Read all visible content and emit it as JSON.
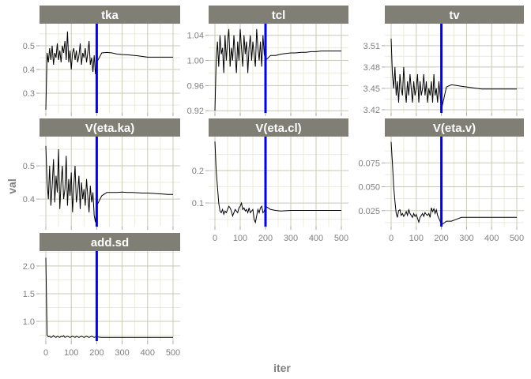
{
  "chart_data": {
    "type": "line",
    "xlabel": "iter",
    "ylabel": "val",
    "xlim": [
      0,
      500
    ],
    "x_ticks": [
      0,
      100,
      200,
      300,
      400,
      500
    ],
    "vline": {
      "x": 200,
      "color": "#0000ff"
    },
    "line_color": "#000000",
    "strip_color": "#7f7f75",
    "grid": true,
    "x": [
      0,
      5,
      10,
      15,
      20,
      25,
      30,
      35,
      40,
      45,
      50,
      55,
      60,
      65,
      70,
      75,
      80,
      85,
      90,
      95,
      100,
      105,
      110,
      115,
      120,
      125,
      130,
      135,
      140,
      145,
      150,
      155,
      160,
      165,
      170,
      175,
      180,
      185,
      190,
      195,
      200,
      220,
      240,
      260,
      280,
      300,
      320,
      340,
      360,
      380,
      400,
      420,
      440,
      460,
      480,
      500
    ],
    "panels": [
      {
        "name": "tka",
        "ylim": [
          0.217,
          0.593
        ],
        "y_ticks": [
          0.3,
          0.4,
          0.5
        ],
        "y_tick_labels": [
          "0.3",
          "0.4",
          "0.5"
        ],
        "values": [
          0.23,
          0.47,
          0.43,
          0.49,
          0.44,
          0.5,
          0.42,
          0.47,
          0.45,
          0.51,
          0.44,
          0.48,
          0.43,
          0.5,
          0.47,
          0.52,
          0.44,
          0.56,
          0.43,
          0.48,
          0.4,
          0.47,
          0.49,
          0.44,
          0.48,
          0.43,
          0.46,
          0.51,
          0.42,
          0.47,
          0.45,
          0.49,
          0.43,
          0.47,
          0.52,
          0.42,
          0.45,
          0.39,
          0.46,
          0.38,
          0.43,
          0.47,
          0.472,
          0.47,
          0.465,
          0.463,
          0.462,
          0.46,
          0.458,
          0.455,
          0.452,
          0.452,
          0.452,
          0.452,
          0.452,
          0.452
        ]
      },
      {
        "name": "tcl",
        "ylim": [
          0.9165,
          1.0585
        ],
        "y_ticks": [
          0.92,
          0.96,
          1.0,
          1.04
        ],
        "y_tick_labels": [
          "0.92",
          "0.96",
          "1.00",
          "1.04"
        ],
        "values": [
          0.92,
          1.0,
          1.03,
          0.99,
          1.04,
          1.01,
          1.02,
          0.98,
          1.04,
          1.0,
          1.03,
          1.05,
          0.99,
          1.02,
          1.0,
          1.04,
          1.01,
          0.98,
          1.03,
          1.0,
          1.05,
          1.02,
          0.99,
          1.04,
          1.01,
          1.03,
          0.98,
          1.02,
          1.04,
          1.0,
          1.03,
          1.01,
          0.99,
          1.05,
          1.02,
          1.0,
          1.03,
          0.99,
          1.04,
          1.01,
          1.0,
          1.008,
          1.008,
          1.01,
          1.011,
          1.012,
          1.012,
          1.013,
          1.013,
          1.014,
          1.014,
          1.015,
          1.015,
          1.015,
          1.015,
          1.015
        ]
      },
      {
        "name": "tv",
        "ylim": [
          3.4155,
          3.541
        ],
        "y_ticks": [
          3.42,
          3.45,
          3.48,
          3.51
        ],
        "y_tick_labels": [
          "3.42",
          "3.45",
          "3.48",
          "3.51"
        ],
        "values": [
          3.52,
          3.47,
          3.45,
          3.48,
          3.44,
          3.46,
          3.43,
          3.47,
          3.45,
          3.44,
          3.48,
          3.45,
          3.43,
          3.46,
          3.44,
          3.47,
          3.45,
          3.43,
          3.46,
          3.44,
          3.45,
          3.47,
          3.43,
          3.46,
          3.44,
          3.45,
          3.47,
          3.44,
          3.46,
          3.43,
          3.45,
          3.44,
          3.46,
          3.43,
          3.47,
          3.44,
          3.45,
          3.43,
          3.46,
          3.44,
          3.42,
          3.452,
          3.455,
          3.454,
          3.453,
          3.452,
          3.451,
          3.45,
          3.449,
          3.449,
          3.449,
          3.449,
          3.449,
          3.449,
          3.449,
          3.449
        ]
      },
      {
        "name": "V(eta.ka)",
        "ylim": [
          0.317,
          0.588
        ],
        "y_ticks": [
          0.4,
          0.5
        ],
        "y_tick_labels": [
          "0.4",
          "0.5"
        ],
        "values": [
          0.56,
          0.45,
          0.4,
          0.5,
          0.38,
          0.44,
          0.52,
          0.39,
          0.47,
          0.42,
          0.55,
          0.37,
          0.45,
          0.5,
          0.4,
          0.43,
          0.53,
          0.38,
          0.46,
          0.41,
          0.48,
          0.36,
          0.44,
          0.5,
          0.39,
          0.42,
          0.47,
          0.37,
          0.45,
          0.4,
          0.43,
          0.38,
          0.46,
          0.41,
          0.36,
          0.44,
          0.39,
          0.42,
          0.35,
          0.33,
          0.38,
          0.41,
          0.42,
          0.42,
          0.42,
          0.421,
          0.42,
          0.42,
          0.419,
          0.418,
          0.418,
          0.417,
          0.416,
          0.415,
          0.414,
          0.414
        ]
      },
      {
        "name": "V(eta.cl)",
        "ylim": [
          0.027,
          0.305
        ],
        "y_ticks": [
          0.1,
          0.2
        ],
        "y_tick_labels": [
          "0.1",
          "0.2"
        ],
        "values": [
          0.29,
          0.2,
          0.15,
          0.1,
          0.075,
          0.07,
          0.08,
          0.065,
          0.075,
          0.07,
          0.08,
          0.09,
          0.085,
          0.075,
          0.06,
          0.07,
          0.08,
          0.075,
          0.07,
          0.085,
          0.09,
          0.1,
          0.08,
          0.085,
          0.075,
          0.08,
          0.07,
          0.085,
          0.07,
          0.075,
          0.08,
          0.05,
          0.04,
          0.06,
          0.08,
          0.07,
          0.085,
          0.09,
          0.07,
          0.075,
          0.09,
          0.08,
          0.077,
          0.075,
          0.076,
          0.077,
          0.077,
          0.077,
          0.077,
          0.077,
          0.077,
          0.077,
          0.077,
          0.077,
          0.077,
          0.077
        ]
      },
      {
        "name": "V(eta.v)",
        "ylim": [
          0.0083,
          0.1025
        ],
        "y_ticks": [
          0.025,
          0.05,
          0.075
        ],
        "y_tick_labels": [
          "0.025",
          "0.050",
          "0.075"
        ],
        "values": [
          0.097,
          0.075,
          0.05,
          0.035,
          0.022,
          0.018,
          0.025,
          0.026,
          0.02,
          0.022,
          0.019,
          0.021,
          0.024,
          0.02,
          0.026,
          0.022,
          0.02,
          0.018,
          0.022,
          0.019,
          0.021,
          0.017,
          0.013,
          0.018,
          0.02,
          0.022,
          0.019,
          0.023,
          0.021,
          0.02,
          0.022,
          0.018,
          0.028,
          0.024,
          0.027,
          0.022,
          0.026,
          0.02,
          0.017,
          0.014,
          0.01,
          0.014,
          0.014,
          0.016,
          0.018,
          0.018,
          0.018,
          0.018,
          0.018,
          0.018,
          0.018,
          0.018,
          0.018,
          0.018,
          0.018,
          0.018
        ]
      },
      {
        "name": "add.sd",
        "ylim": [
          0.643,
          2.27
        ],
        "y_ticks": [
          1.0,
          1.5,
          2.0
        ],
        "y_tick_labels": [
          "1.0",
          "1.5",
          "2.0"
        ],
        "values": [
          2.15,
          0.75,
          0.72,
          0.73,
          0.71,
          0.72,
          0.74,
          0.72,
          0.71,
          0.73,
          0.72,
          0.71,
          0.73,
          0.72,
          0.74,
          0.71,
          0.72,
          0.73,
          0.72,
          0.71,
          0.72,
          0.73,
          0.72,
          0.71,
          0.73,
          0.72,
          0.71,
          0.72,
          0.73,
          0.72,
          0.71,
          0.72,
          0.73,
          0.72,
          0.71,
          0.72,
          0.73,
          0.72,
          0.71,
          0.72,
          0.72,
          0.71,
          0.71,
          0.71,
          0.71,
          0.71,
          0.71,
          0.71,
          0.71,
          0.71,
          0.71,
          0.71,
          0.71,
          0.71,
          0.71,
          0.71
        ]
      }
    ]
  }
}
